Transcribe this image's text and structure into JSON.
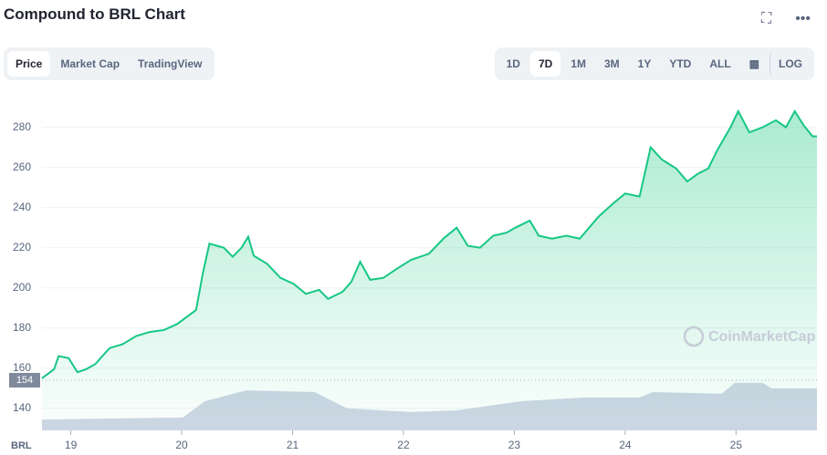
{
  "header": {
    "title": "Compound to BRL Chart"
  },
  "tabs": [
    "Price",
    "Market Cap",
    "TradingView"
  ],
  "active_tab": 0,
  "ranges": [
    "1D",
    "7D",
    "1M",
    "3M",
    "1Y",
    "YTD",
    "ALL"
  ],
  "active_range": 1,
  "log_button": "LOG",
  "chart_data": {
    "type": "line",
    "color": "#16c784",
    "axis_label": "BRL",
    "watermark": "CoinMarketCap",
    "x": [
      18.74,
      18.85,
      18.89,
      18.98,
      19.06,
      19.14,
      19.22,
      19.35,
      19.47,
      19.59,
      19.71,
      19.84,
      19.96,
      20.13,
      20.19,
      20.25,
      20.38,
      20.46,
      20.54,
      20.6,
      20.65,
      20.77,
      20.89,
      21.01,
      21.12,
      21.24,
      21.32,
      21.45,
      21.53,
      21.61,
      21.7,
      21.82,
      21.94,
      22.07,
      22.23,
      22.36,
      22.48,
      22.58,
      22.69,
      22.81,
      22.93,
      23.01,
      23.14,
      23.22,
      23.34,
      23.47,
      23.59,
      23.76,
      23.88,
      24.0,
      24.13,
      24.23,
      24.33,
      24.46,
      24.56,
      24.66,
      24.75,
      24.83,
      24.95,
      25.02,
      25.12,
      25.24,
      25.36,
      25.45,
      25.53,
      25.61,
      25.69,
      25.73
    ],
    "values": [
      155,
      159.5,
      166,
      165,
      158,
      159.5,
      162,
      170,
      172,
      176,
      178,
      179,
      182,
      189,
      207,
      222,
      220,
      215.5,
      220,
      225.5,
      216,
      212,
      205,
      202,
      197,
      199,
      194.5,
      198,
      203,
      213,
      204,
      205,
      209.5,
      214,
      217,
      224.5,
      230,
      221,
      220,
      226,
      227.5,
      230,
      233.5,
      226,
      224.5,
      226,
      224.5,
      235.5,
      241.5,
      247,
      245.5,
      270,
      264,
      259.5,
      253,
      257,
      259.5,
      268.5,
      280,
      288,
      277.5,
      280,
      283.5,
      280,
      288,
      281,
      275.5,
      275.5
    ],
    "xlim": [
      18.74,
      25.73
    ],
    "xticks": [
      19,
      20,
      21,
      22,
      23,
      24,
      25
    ],
    "ylim": [
      129,
      298
    ],
    "yticks": [
      140,
      160,
      180,
      200,
      220,
      240,
      260,
      280
    ],
    "grid": true,
    "reference_value": 154,
    "volume": {
      "color": "#cfd6e4",
      "x": [
        18.74,
        20.01,
        20.21,
        20.58,
        21.2,
        21.49,
        22.07,
        22.48,
        23.06,
        23.63,
        24.13,
        24.25,
        24.87,
        24.99,
        25.24,
        25.32,
        25.73
      ],
      "values": [
        3.2,
        3.8,
        8.6,
        11.8,
        11.3,
        6.5,
        5.4,
        5.9,
        8.6,
        9.7,
        9.7,
        11.3,
        10.8,
        14,
        14,
        12.4,
        12.4
      ]
    },
    "y2lim": [
      0,
      100
    ]
  }
}
